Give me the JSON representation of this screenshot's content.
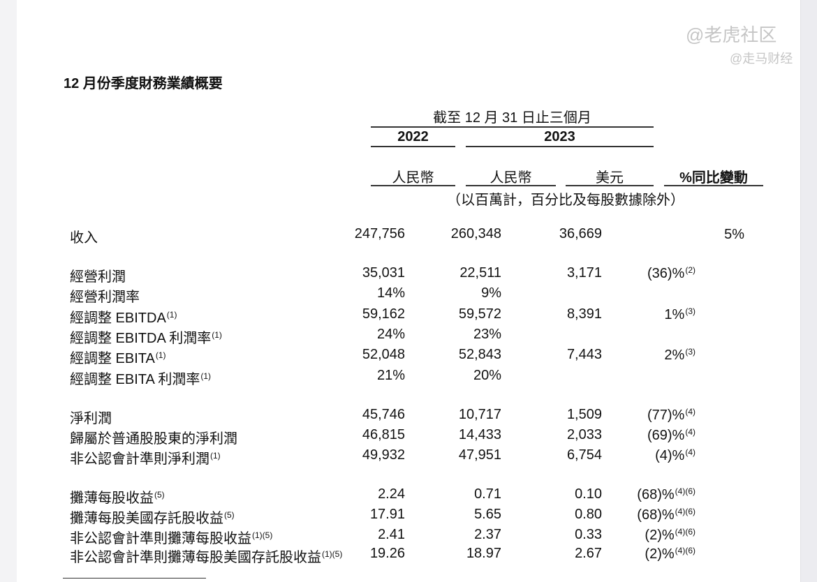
{
  "title": "12 月份季度財務業績概要",
  "header": {
    "period": "截至 12 月 31 日止三個月",
    "year1": "2022",
    "year2": "2023",
    "cur1": "人民幣",
    "cur2": "人民幣",
    "cur3": "美元",
    "change": "%同比變動",
    "note": "（以百萬計，百分比及每股數據除外）"
  },
  "rows": [
    {
      "label": "收入",
      "sup": "",
      "v2022": "247,756",
      "v2023": "260,348",
      "usd": "36,669",
      "change": "5%",
      "change_sup": ""
    },
    {
      "label": "經營利潤",
      "sup": "",
      "v2022": "35,031",
      "v2023": "22,511",
      "usd": "3,171",
      "change": "(36)%",
      "change_sup": "(2)"
    },
    {
      "label": "經營利潤率",
      "sup": "",
      "v2022": "14%",
      "v2023": "9%",
      "usd": "",
      "change": "",
      "change_sup": ""
    },
    {
      "label": "經調整 EBITDA",
      "sup": "(1)",
      "v2022": "59,162",
      "v2023": "59,572",
      "usd": "8,391",
      "change": "1%",
      "change_sup": "(3)"
    },
    {
      "label": "經調整 EBITDA 利潤率",
      "sup": "(1)",
      "v2022": "24%",
      "v2023": "23%",
      "usd": "",
      "change": "",
      "change_sup": ""
    },
    {
      "label": "經調整 EBITA",
      "sup": "(1)",
      "v2022": "52,048",
      "v2023": "52,843",
      "usd": "7,443",
      "change": "2%",
      "change_sup": "(3)"
    },
    {
      "label": "經調整 EBITA 利潤率",
      "sup": "(1)",
      "v2022": "21%",
      "v2023": "20%",
      "usd": "",
      "change": "",
      "change_sup": ""
    },
    {
      "label": "淨利潤",
      "sup": "",
      "v2022": "45,746",
      "v2023": "10,717",
      "usd": "1,509",
      "change": "(77)%",
      "change_sup": "(4)"
    },
    {
      "label": "歸屬於普通股股東的淨利潤",
      "sup": "",
      "v2022": "46,815",
      "v2023": "14,433",
      "usd": "2,033",
      "change": "(69)%",
      "change_sup": "(4)"
    },
    {
      "label": "非公認會計準則淨利潤",
      "sup": "(1)",
      "v2022": "49,932",
      "v2023": "47,951",
      "usd": "6,754",
      "change": "(4)%",
      "change_sup": "(4)"
    },
    {
      "label": "攤薄每股收益",
      "sup": "(5)",
      "v2022": "2.24",
      "v2023": "0.71",
      "usd": "0.10",
      "change": "(68)%",
      "change_sup": "(4)(6)"
    },
    {
      "label": "攤薄每股美國存託股收益",
      "sup": "(5)",
      "v2022": "17.91",
      "v2023": "5.65",
      "usd": "0.80",
      "change": "(68)%",
      "change_sup": "(4)(6)"
    },
    {
      "label": "非公認會計準則攤薄每股收益",
      "sup": "(1)(5)",
      "v2022": "2.41",
      "v2023": "2.37",
      "usd": "0.33",
      "change": "(2)%",
      "change_sup": "(4)(6)"
    },
    {
      "label": "非公認會計準則攤薄每股美國存託股收益",
      "sup": "(1)(5)",
      "v2022": "19.26",
      "v2023": "18.97",
      "usd": "2.67",
      "change": "(2)%",
      "change_sup": "(4)(6)"
    }
  ],
  "watermarks": {
    "top": "@老虎社区",
    "bottom": "@走马财经"
  }
}
